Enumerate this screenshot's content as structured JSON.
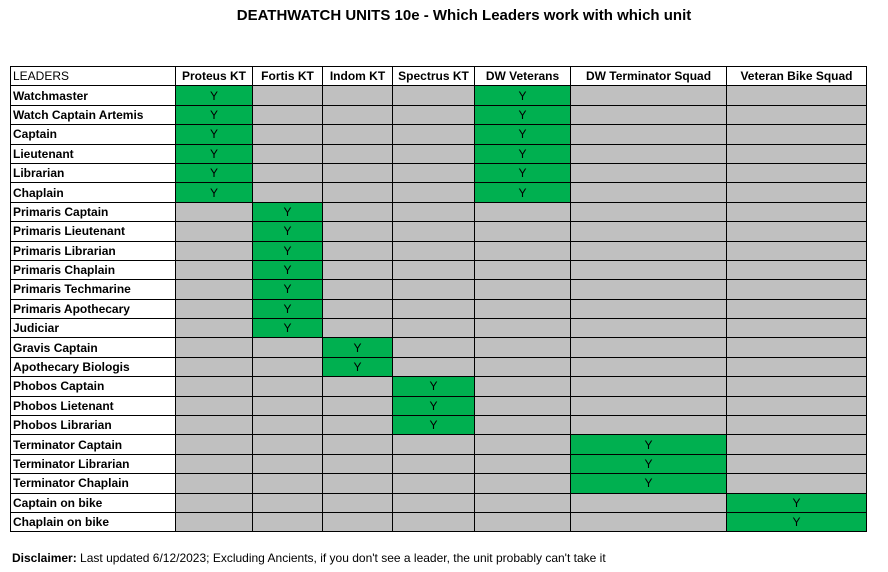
{
  "title": "DEATHWATCH UNITS 10e - Which Leaders work with which unit",
  "colors": {
    "yes": "#00b050",
    "no": "#c0c0c0"
  },
  "header": {
    "leaders_label": "LEADERS",
    "units": [
      "Proteus KT",
      "Fortis KT",
      "Indom KT",
      "Spectrus KT",
      "DW Veterans",
      "DW Terminator Squad",
      "Veteran Bike Squad"
    ]
  },
  "rows": [
    {
      "leader": "Watchmaster",
      "cells": [
        "Y",
        "",
        "",
        "",
        "Y",
        "",
        ""
      ]
    },
    {
      "leader": "Watch Captain Artemis",
      "cells": [
        "Y",
        "",
        "",
        "",
        "Y",
        "",
        ""
      ]
    },
    {
      "leader": "Captain",
      "cells": [
        "Y",
        "",
        "",
        "",
        "Y",
        "",
        ""
      ]
    },
    {
      "leader": "Lieutenant",
      "cells": [
        "Y",
        "",
        "",
        "",
        "Y",
        "",
        ""
      ]
    },
    {
      "leader": "Librarian",
      "cells": [
        "Y",
        "",
        "",
        "",
        "Y",
        "",
        ""
      ]
    },
    {
      "leader": "Chaplain",
      "cells": [
        "Y",
        "",
        "",
        "",
        "Y",
        "",
        ""
      ]
    },
    {
      "leader": "Primaris Captain",
      "cells": [
        "",
        "Y",
        "",
        "",
        "",
        "",
        ""
      ]
    },
    {
      "leader": "Primaris Lieutenant",
      "cells": [
        "",
        "Y",
        "",
        "",
        "",
        "",
        ""
      ]
    },
    {
      "leader": "Primaris Librarian",
      "cells": [
        "",
        "Y",
        "",
        "",
        "",
        "",
        ""
      ]
    },
    {
      "leader": "Primaris Chaplain",
      "cells": [
        "",
        "Y",
        "",
        "",
        "",
        "",
        ""
      ]
    },
    {
      "leader": "Primaris Techmarine",
      "cells": [
        "",
        "Y",
        "",
        "",
        "",
        "",
        ""
      ]
    },
    {
      "leader": "Primaris Apothecary",
      "cells": [
        "",
        "Y",
        "",
        "",
        "",
        "",
        ""
      ]
    },
    {
      "leader": "Judiciar",
      "cells": [
        "",
        "Y",
        "",
        "",
        "",
        "",
        ""
      ]
    },
    {
      "leader": "Gravis Captain",
      "cells": [
        "",
        "",
        "Y",
        "",
        "",
        "",
        ""
      ]
    },
    {
      "leader": "Apothecary Biologis",
      "cells": [
        "",
        "",
        "Y",
        "",
        "",
        "",
        ""
      ]
    },
    {
      "leader": "Phobos Captain",
      "cells": [
        "",
        "",
        "",
        "Y",
        "",
        "",
        ""
      ]
    },
    {
      "leader": "Phobos Lietenant",
      "cells": [
        "",
        "",
        "",
        "Y",
        "",
        "",
        ""
      ]
    },
    {
      "leader": "Phobos Librarian",
      "cells": [
        "",
        "",
        "",
        "Y",
        "",
        "",
        ""
      ]
    },
    {
      "leader": "Terminator Captain",
      "cells": [
        "",
        "",
        "",
        "",
        "",
        "Y",
        ""
      ]
    },
    {
      "leader": "Terminator Librarian",
      "cells": [
        "",
        "",
        "",
        "",
        "",
        "Y",
        ""
      ]
    },
    {
      "leader": "Terminator Chaplain",
      "cells": [
        "",
        "",
        "",
        "",
        "",
        "Y",
        ""
      ]
    },
    {
      "leader": "Captain on bike",
      "cells": [
        "",
        "",
        "",
        "",
        "",
        "",
        "Y"
      ]
    },
    {
      "leader": "Chaplain on bike",
      "cells": [
        "",
        "",
        "",
        "",
        "",
        "",
        "Y"
      ]
    }
  ],
  "disclaimer": {
    "label": "Disclaimer:",
    "text": "Last updated 6/12/2023; Excluding Ancients, if you don't see a leader, the unit probably can't take it"
  }
}
